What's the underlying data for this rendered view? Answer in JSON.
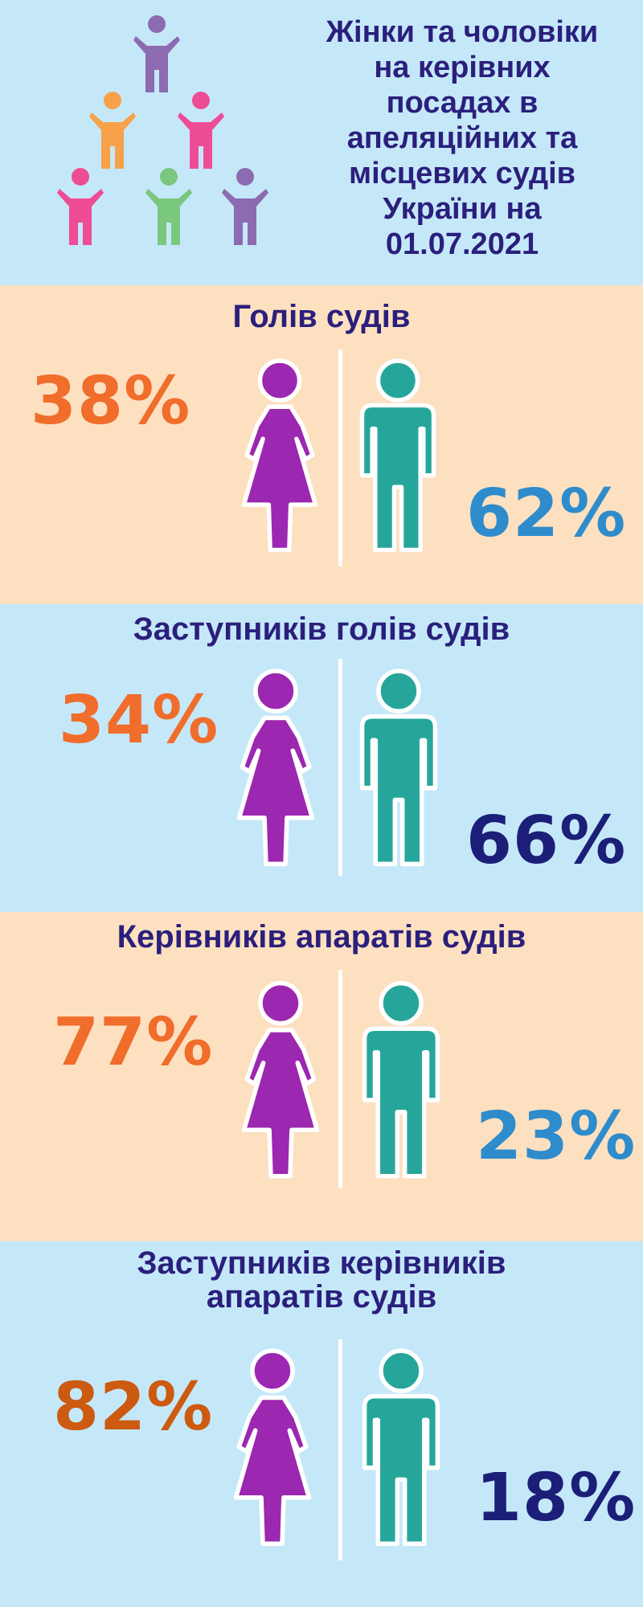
{
  "header": {
    "title_lines": [
      "Жінки та чоловіки",
      "на керівних",
      "посадах в",
      "апеляційних та",
      "місцевих судів",
      "України на",
      "01.07.2021"
    ],
    "logo_icon": "people-pyramid-icon"
  },
  "colors": {
    "woman": "#9c27b0",
    "man": "#26a69a",
    "orange": "#f06d2c",
    "dark_orange": "#cc5a10",
    "light_blue": "#2e8ccc",
    "navy": "#1b1f78",
    "title": "#2b1f7c",
    "peach_bg": "#fde0c0",
    "blue_bg": "#c5e8f9"
  },
  "chart_data": [
    {
      "type": "pie",
      "title": "Голів судів",
      "categories": [
        "Жінки",
        "Чоловіки"
      ],
      "values": [
        38,
        62
      ],
      "labels": [
        "38%",
        "62%"
      ]
    },
    {
      "type": "pie",
      "title": "Заступників голів судів",
      "categories": [
        "Жінки",
        "Чоловіки"
      ],
      "values": [
        34,
        66
      ],
      "labels": [
        "34%",
        "66%"
      ]
    },
    {
      "type": "pie",
      "title": "Керівників апаратів судів",
      "categories": [
        "Жінки",
        "Чоловіки"
      ],
      "values": [
        77,
        23
      ],
      "labels": [
        "77%",
        "23%"
      ]
    },
    {
      "type": "pie",
      "title": "Заступників керівників апаратів судів",
      "title_lines": [
        "Заступників керівників",
        "апаратів судів"
      ],
      "categories": [
        "Жінки",
        "Чоловіки"
      ],
      "values": [
        82,
        18
      ],
      "labels": [
        "82%",
        "18%"
      ]
    }
  ]
}
